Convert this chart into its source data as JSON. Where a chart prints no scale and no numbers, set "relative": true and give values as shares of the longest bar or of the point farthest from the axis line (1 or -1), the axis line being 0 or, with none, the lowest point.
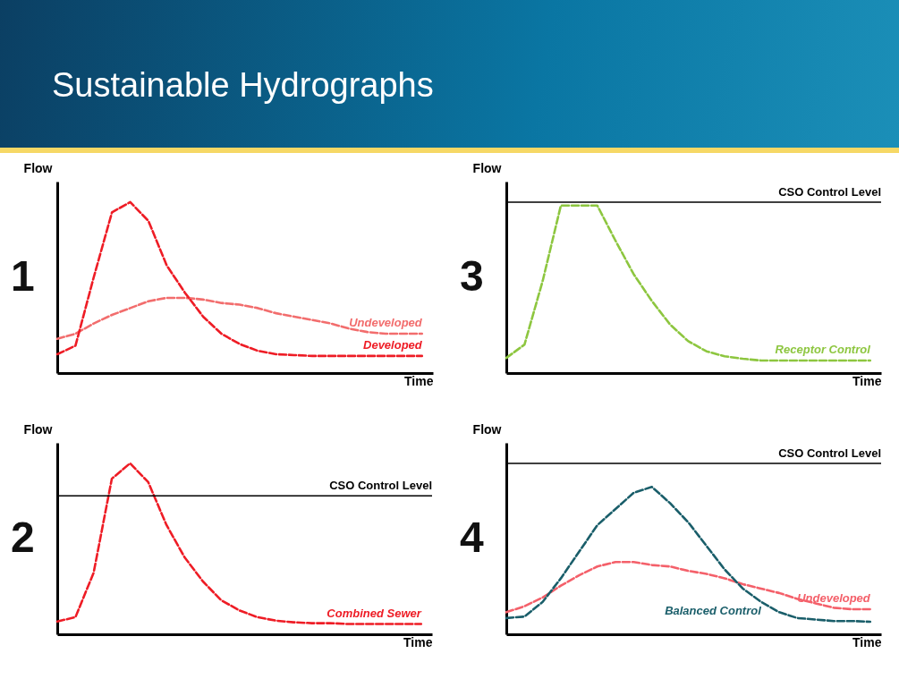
{
  "chart_data": [
    {
      "type": "line",
      "title": "Sustainable Hydrographs",
      "xlabel": "Time",
      "ylabel": "Flow",
      "relative": true,
      "line_style": "dashed",
      "annotations": [
        "1"
      ],
      "categories": [
        null,
        null,
        null,
        null,
        null,
        null,
        null,
        null,
        null,
        null,
        null,
        null,
        null,
        null,
        null,
        null,
        null,
        null,
        null,
        null,
        null
      ],
      "series": [
        {
          "name": "Undeveloped",
          "color": "#f26d6d",
          "values": [
            0.2,
            0.23,
            0.29,
            0.34,
            0.38,
            0.42,
            0.44,
            0.44,
            0.43,
            0.41,
            0.4,
            0.38,
            0.35,
            0.33,
            0.31,
            0.29,
            0.26,
            0.24,
            0.23,
            0.23,
            0.23
          ]
        },
        {
          "name": "Developed",
          "color": "#ee1c25",
          "values": [
            0.11,
            0.16,
            0.56,
            0.94,
            1.0,
            0.89,
            0.63,
            0.47,
            0.33,
            0.23,
            0.17,
            0.13,
            0.11,
            0.105,
            0.1,
            0.1,
            0.1,
            0.1,
            0.1,
            0.1,
            0.1
          ]
        }
      ]
    },
    {
      "type": "line",
      "xlabel": "Time",
      "ylabel": "Flow",
      "relative": true,
      "line_style": "dashed",
      "annotations": [
        "3"
      ],
      "categories": [
        null,
        null,
        null,
        null,
        null,
        null,
        null,
        null,
        null,
        null,
        null,
        null,
        null,
        null,
        null,
        null,
        null,
        null,
        null,
        null,
        null
      ],
      "ref_lines": [
        {
          "axis": "y",
          "value": 1.02,
          "label": "CSO Control Level",
          "color": "#000000"
        }
      ],
      "series": [
        {
          "name": "Receptor Control",
          "color": "#8dc63f",
          "values": [
            0.09,
            0.17,
            0.55,
            1.0,
            1.0,
            1.0,
            0.79,
            0.59,
            0.43,
            0.29,
            0.19,
            0.13,
            0.1,
            0.085,
            0.075,
            0.075,
            0.075,
            0.075,
            0.075,
            0.075,
            0.075
          ]
        }
      ]
    },
    {
      "type": "line",
      "xlabel": "Time",
      "ylabel": "Flow",
      "relative": true,
      "line_style": "dashed",
      "annotations": [
        "2"
      ],
      "categories": [
        null,
        null,
        null,
        null,
        null,
        null,
        null,
        null,
        null,
        null,
        null,
        null,
        null,
        null,
        null,
        null,
        null,
        null,
        null,
        null,
        null
      ],
      "ref_lines": [
        {
          "axis": "y",
          "value": 0.81,
          "label": "CSO Control Level",
          "color": "#000000"
        }
      ],
      "series": [
        {
          "name": "Combined Sewer",
          "color": "#ee1c25",
          "values": [
            0.075,
            0.1,
            0.36,
            0.91,
            1.0,
            0.89,
            0.64,
            0.45,
            0.31,
            0.2,
            0.14,
            0.1,
            0.08,
            0.07,
            0.065,
            0.065,
            0.06,
            0.06,
            0.06,
            0.06,
            0.06
          ]
        }
      ]
    },
    {
      "type": "line",
      "xlabel": "Time",
      "ylabel": "Flow",
      "relative": true,
      "line_style": "dashed",
      "annotations": [
        "4"
      ],
      "categories": [
        null,
        null,
        null,
        null,
        null,
        null,
        null,
        null,
        null,
        null,
        null,
        null,
        null,
        null,
        null,
        null,
        null,
        null,
        null,
        null,
        null
      ],
      "ref_lines": [
        {
          "axis": "y",
          "value": 1.16,
          "label": "CSO Control Level",
          "color": "#000000"
        }
      ],
      "series": [
        {
          "name": "Undeveloped",
          "color": "#f4606a",
          "values": [
            0.15,
            0.19,
            0.25,
            0.33,
            0.4,
            0.46,
            0.49,
            0.49,
            0.47,
            0.46,
            0.43,
            0.41,
            0.38,
            0.34,
            0.31,
            0.28,
            0.24,
            0.21,
            0.18,
            0.17,
            0.17
          ]
        },
        {
          "name": "Balanced Control",
          "color": "#1a5e6a",
          "values": [
            0.11,
            0.12,
            0.22,
            0.38,
            0.56,
            0.74,
            0.85,
            0.96,
            1.0,
            0.89,
            0.76,
            0.6,
            0.44,
            0.31,
            0.22,
            0.15,
            0.11,
            0.1,
            0.09,
            0.09,
            0.085
          ]
        }
      ]
    }
  ]
}
